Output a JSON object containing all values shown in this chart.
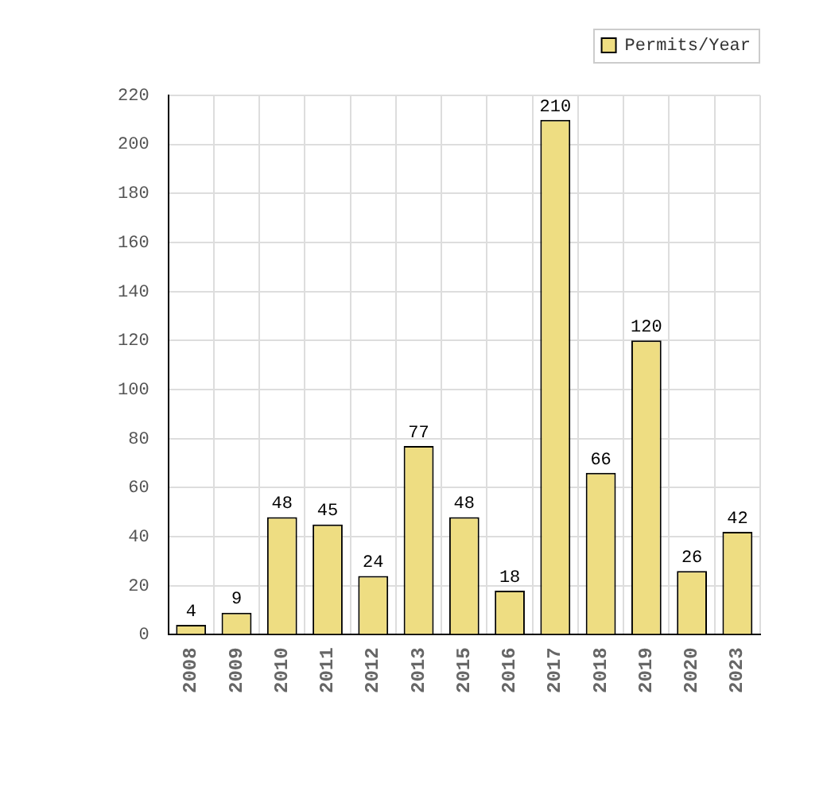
{
  "chart_data": {
    "type": "bar",
    "categories": [
      "2008",
      "2009",
      "2010",
      "2011",
      "2012",
      "2013",
      "2015",
      "2016",
      "2017",
      "2018",
      "2019",
      "2020",
      "2023"
    ],
    "series": [
      {
        "name": "Permits/Year",
        "color": "#eedd82",
        "values": [
          4,
          9,
          48,
          45,
          24,
          77,
          48,
          18,
          210,
          66,
          120,
          26,
          42
        ]
      }
    ],
    "ylim": [
      0,
      220
    ],
    "yticks": [
      0,
      20,
      40,
      60,
      80,
      100,
      120,
      140,
      160,
      180,
      200,
      220
    ],
    "grid": true,
    "legend": "top right",
    "data_labels": true
  }
}
